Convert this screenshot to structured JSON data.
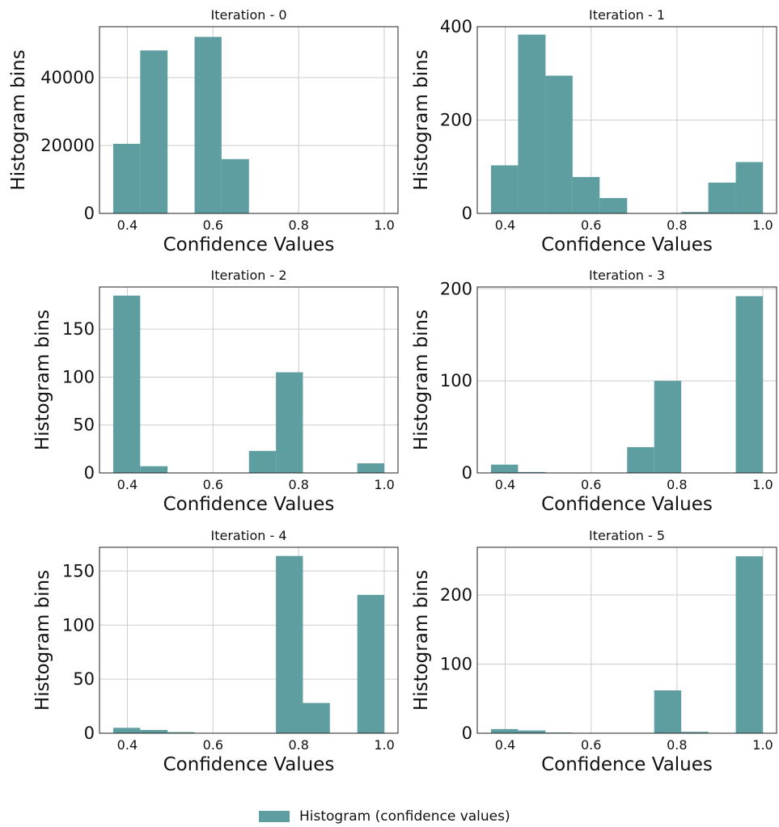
{
  "legend": {
    "label": "Histogram (confidence values)",
    "color": "#5f9ea0"
  },
  "chart_data": [
    {
      "type": "bar",
      "title": "Iteration - 0",
      "xlabel": "Confidence Values",
      "ylabel": "Histogram bins",
      "bin_edges": [
        0.367,
        0.43,
        0.494,
        0.557,
        0.62,
        0.684,
        0.747,
        0.81,
        0.873,
        0.937,
        1.0
      ],
      "values": [
        20500,
        48000,
        0,
        52000,
        16000,
        0,
        0,
        0,
        0,
        0
      ],
      "xlim": [
        0.335,
        1.032
      ],
      "ylim": [
        0,
        55000
      ],
      "xticks": [
        0.4,
        0.6,
        0.8,
        1.0
      ],
      "xtick_labels": [
        "0.4",
        "0.6",
        "0.8",
        "1.0"
      ],
      "yticks": [
        0,
        20000,
        40000
      ],
      "ytick_labels": [
        "0",
        "20000",
        "40000"
      ],
      "grid": true
    },
    {
      "type": "bar",
      "title": "Iteration - 1",
      "xlabel": "Confidence Values",
      "ylabel": "Histogram bins",
      "bin_edges": [
        0.367,
        0.43,
        0.494,
        0.557,
        0.62,
        0.684,
        0.747,
        0.81,
        0.873,
        0.937,
        1.0
      ],
      "values": [
        103,
        383,
        295,
        78,
        33,
        0,
        0,
        3,
        66,
        110
      ],
      "xlim": [
        0.335,
        1.032
      ],
      "ylim": [
        0,
        400
      ],
      "xticks": [
        0.4,
        0.6,
        0.8,
        1.0
      ],
      "xtick_labels": [
        "0.4",
        "0.6",
        "0.8",
        "1.0"
      ],
      "yticks": [
        0,
        200,
        400
      ],
      "ytick_labels": [
        "0",
        "200",
        "400"
      ],
      "grid": true
    },
    {
      "type": "bar",
      "title": "Iteration - 2",
      "xlabel": "Confidence Values",
      "ylabel": "Histogram bins",
      "bin_edges": [
        0.367,
        0.43,
        0.494,
        0.557,
        0.62,
        0.684,
        0.747,
        0.81,
        0.873,
        0.937,
        1.0
      ],
      "values": [
        185,
        7,
        0,
        0,
        0,
        23,
        105,
        0,
        0,
        10
      ],
      "xlim": [
        0.335,
        1.032
      ],
      "ylim": [
        0,
        194
      ],
      "xticks": [
        0.4,
        0.6,
        0.8,
        1.0
      ],
      "xtick_labels": [
        "0.4",
        "0.6",
        "0.8",
        "1.0"
      ],
      "yticks": [
        0,
        50,
        100,
        150
      ],
      "ytick_labels": [
        "0",
        "50",
        "100",
        "150"
      ],
      "grid": true
    },
    {
      "type": "bar",
      "title": "Iteration - 3",
      "xlabel": "Confidence Values",
      "ylabel": "Histogram bins",
      "bin_edges": [
        0.367,
        0.43,
        0.494,
        0.557,
        0.62,
        0.684,
        0.747,
        0.81,
        0.873,
        0.937,
        1.0
      ],
      "values": [
        9,
        1,
        0,
        0,
        0,
        28,
        100,
        0,
        0,
        192
      ],
      "xlim": [
        0.335,
        1.032
      ],
      "ylim": [
        0,
        202
      ],
      "xticks": [
        0.4,
        0.6,
        0.8,
        1.0
      ],
      "xtick_labels": [
        "0.4",
        "0.6",
        "0.8",
        "1.0"
      ],
      "yticks": [
        0,
        100,
        200
      ],
      "ytick_labels": [
        "0",
        "100",
        "200"
      ],
      "grid": true
    },
    {
      "type": "bar",
      "title": "Iteration - 4",
      "xlabel": "Confidence Values",
      "ylabel": "Histogram bins",
      "bin_edges": [
        0.367,
        0.43,
        0.494,
        0.557,
        0.62,
        0.684,
        0.747,
        0.81,
        0.873,
        0.937,
        1.0
      ],
      "values": [
        5,
        3,
        1,
        0,
        0,
        0,
        164,
        28,
        0,
        128
      ],
      "xlim": [
        0.335,
        1.032
      ],
      "ylim": [
        0,
        172
      ],
      "xticks": [
        0.4,
        0.6,
        0.8,
        1.0
      ],
      "xtick_labels": [
        "0.4",
        "0.6",
        "0.8",
        "1.0"
      ],
      "yticks": [
        0,
        50,
        100,
        150
      ],
      "ytick_labels": [
        "0",
        "50",
        "100",
        "150"
      ],
      "grid": true
    },
    {
      "type": "bar",
      "title": "Iteration - 5",
      "xlabel": "Confidence Values",
      "ylabel": "Histogram bins",
      "bin_edges": [
        0.367,
        0.43,
        0.494,
        0.557,
        0.62,
        0.684,
        0.747,
        0.81,
        0.873,
        0.937,
        1.0
      ],
      "values": [
        6,
        4,
        1,
        0,
        0,
        0,
        62,
        2,
        0,
        256
      ],
      "xlim": [
        0.335,
        1.032
      ],
      "ylim": [
        0,
        269
      ],
      "xticks": [
        0.4,
        0.6,
        0.8,
        1.0
      ],
      "xtick_labels": [
        "0.4",
        "0.6",
        "0.8",
        "1.0"
      ],
      "yticks": [
        0,
        100,
        200
      ],
      "ytick_labels": [
        "0",
        "100",
        "200"
      ],
      "grid": true
    }
  ]
}
